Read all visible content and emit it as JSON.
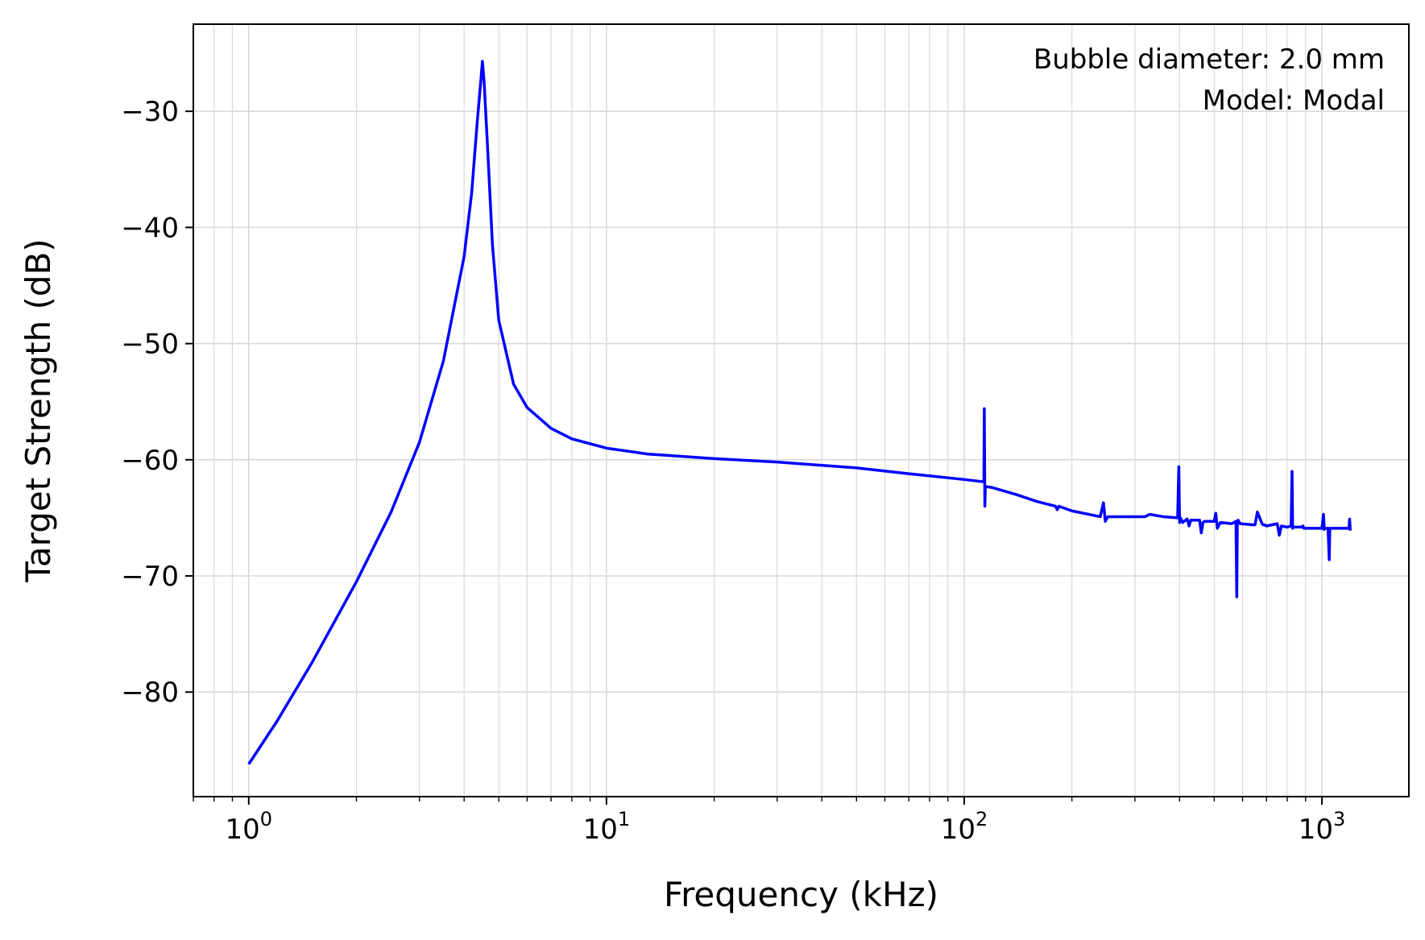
{
  "chart_data": {
    "type": "line",
    "xlabel": "Frequency (kHz)",
    "ylabel": "Target Strength (dB)",
    "x_scale": "log",
    "xlim": [
      0.7,
      1750
    ],
    "ylim": [
      -89,
      -22.5
    ],
    "x_ticks": [
      {
        "value": 1,
        "base": "10",
        "exp": "0"
      },
      {
        "value": 10,
        "base": "10",
        "exp": "1"
      },
      {
        "value": 100,
        "base": "10",
        "exp": "2"
      },
      {
        "value": 1000,
        "base": "10",
        "exp": "3"
      }
    ],
    "y_ticks": [
      {
        "value": -30,
        "label": "−30"
      },
      {
        "value": -40,
        "label": "−40"
      },
      {
        "value": -50,
        "label": "−50"
      },
      {
        "value": -60,
        "label": "−60"
      },
      {
        "value": -70,
        "label": "−70"
      },
      {
        "value": -80,
        "label": "−80"
      }
    ],
    "grid": true,
    "annotations": [
      "Bubble diameter: 2.0 mm",
      "Model: Modal"
    ],
    "annotation_position": "top-right",
    "series": [
      {
        "color": "#0000ff",
        "x": [
          1.0,
          1.2,
          1.5,
          2.0,
          2.5,
          3.0,
          3.5,
          4.0,
          4.2,
          4.35,
          4.45,
          4.5,
          4.55,
          4.65,
          4.8,
          5.0,
          5.5,
          6.0,
          7.0,
          8.0,
          10,
          13,
          20,
          30,
          50,
          70,
          100,
          113.5,
          113.8,
          114.2,
          114.6,
          120,
          140,
          160,
          180,
          182,
          184,
          200,
          240,
          245,
          248,
          252,
          280,
          320,
          330,
          360,
          395,
          398,
          400,
          402,
          405,
          408,
          420,
          425,
          430,
          455,
          460,
          465,
          470,
          500,
          505,
          510,
          520,
          560,
          575,
          578,
          580,
          583,
          590,
          640,
          650,
          660,
          680,
          685,
          690,
          700,
          750,
          760,
          770,
          800,
          820,
          825,
          828,
          832,
          840,
          880,
          885,
          890,
          920,
          1000,
          1010,
          1015,
          1020,
          1040,
          1048,
          1052,
          1060,
          1100,
          1190,
          1195,
          1200
        ],
        "y": [
          -86.2,
          -82.5,
          -77.5,
          -70.5,
          -64.5,
          -58.5,
          -51.5,
          -42.5,
          -37.0,
          -31.0,
          -27.5,
          -25.7,
          -27.5,
          -33.0,
          -41.5,
          -48.0,
          -53.5,
          -55.5,
          -57.3,
          -58.2,
          -59.0,
          -59.5,
          -59.9,
          -60.2,
          -60.7,
          -61.2,
          -61.7,
          -61.9,
          -55.6,
          -64.0,
          -62.3,
          -62.4,
          -63.0,
          -63.6,
          -64.0,
          -64.3,
          -64.0,
          -64.4,
          -64.9,
          -63.7,
          -65.3,
          -64.9,
          -64.9,
          -64.9,
          -64.7,
          -64.9,
          -65.0,
          -60.6,
          -65.4,
          -65.0,
          -65.2,
          -65.4,
          -65.1,
          -65.7,
          -65.2,
          -65.2,
          -66.3,
          -65.4,
          -65.3,
          -65.3,
          -64.6,
          -65.9,
          -65.4,
          -65.5,
          -65.3,
          -71.8,
          -65.4,
          -65.2,
          -65.5,
          -65.6,
          -65.6,
          -64.5,
          -65.5,
          -65.6,
          -65.6,
          -65.7,
          -65.5,
          -66.5,
          -65.7,
          -65.8,
          -65.7,
          -61.0,
          -65.9,
          -65.8,
          -65.8,
          -65.8,
          -65.7,
          -65.9,
          -65.9,
          -65.9,
          -64.7,
          -66.0,
          -65.9,
          -65.9,
          -68.6,
          -65.9,
          -65.9,
          -65.9,
          -65.9,
          -65.1,
          -66.1
        ]
      }
    ]
  }
}
